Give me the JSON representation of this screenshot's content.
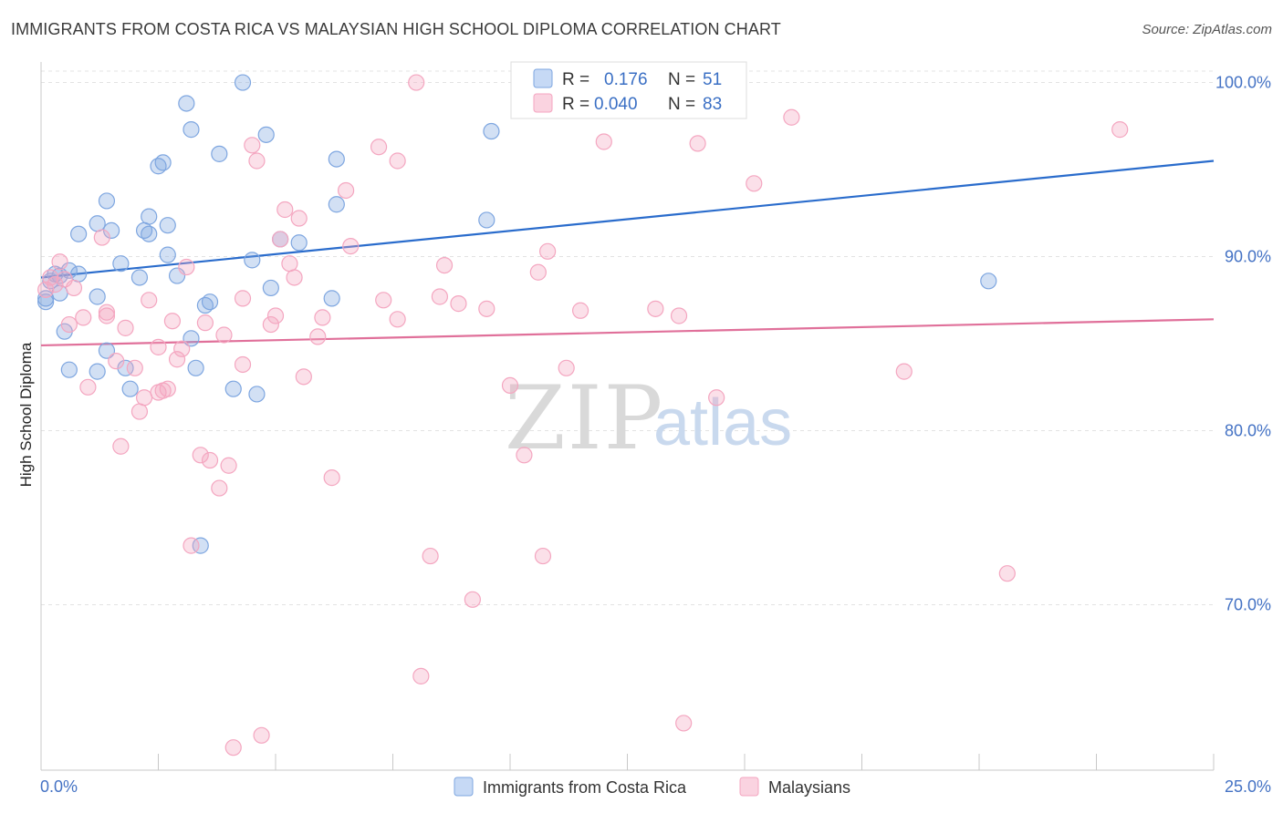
{
  "title": "IMMIGRANTS FROM COSTA RICA VS MALAYSIAN HIGH SCHOOL DIPLOMA CORRELATION CHART",
  "source": "Source: ZipAtlas.com",
  "watermark": {
    "zip": "ZIP",
    "atlas": "atlas"
  },
  "legend": {
    "rows": [
      {
        "r_label": "R =",
        "r_value": "0.176",
        "n_label": "N =",
        "n_value": "51",
        "color": "#7ea6e0"
      },
      {
        "r_label": "R =",
        "r_value": "0.040",
        "n_label": "N =",
        "n_value": "83",
        "color": "#f4a6c0"
      }
    ]
  },
  "bottom_legend": [
    {
      "label": "Immigrants from Costa Rica",
      "color": "#7ea6e0"
    },
    {
      "label": "Malaysians",
      "color": "#f4a6c0"
    }
  ],
  "chart_data": {
    "type": "scatter",
    "title": "IMMIGRANTS FROM COSTA RICA VS MALAYSIAN HIGH SCHOOL DIPLOMA CORRELATION CHART",
    "xlabel": "",
    "ylabel": "High School Diploma",
    "xlim": [
      0,
      25
    ],
    "ylim": [
      60.5,
      101
    ],
    "x_tick_labels": [
      "0.0%",
      "25.0%"
    ],
    "y_ticks": [
      70,
      80,
      90,
      100
    ],
    "y_tick_labels": [
      "70.0%",
      "80.0%",
      "90.0%",
      "100.0%"
    ],
    "grid": true,
    "legend_position": "top-center",
    "series": [
      {
        "name": "Immigrants from Costa Rica",
        "color": "#7ea6e0",
        "line_color": "#2a6ccc",
        "trend": {
          "x": [
            0,
            25
          ],
          "y": [
            88.8,
            95.5
          ]
        },
        "points": [
          [
            0.1,
            87.6
          ],
          [
            0.1,
            87.4
          ],
          [
            0.2,
            88.6
          ],
          [
            0.3,
            89.0
          ],
          [
            0.4,
            88.9
          ],
          [
            0.4,
            87.9
          ],
          [
            0.5,
            85.7
          ],
          [
            0.6,
            83.5
          ],
          [
            0.6,
            89.2
          ],
          [
            0.8,
            91.3
          ],
          [
            0.8,
            89.0
          ],
          [
            1.2,
            83.4
          ],
          [
            1.2,
            87.7
          ],
          [
            1.2,
            91.9
          ],
          [
            1.4,
            93.2
          ],
          [
            1.5,
            91.5
          ],
          [
            1.4,
            84.6
          ],
          [
            1.7,
            89.6
          ],
          [
            1.8,
            83.6
          ],
          [
            1.9,
            82.4
          ],
          [
            2.1,
            88.8
          ],
          [
            2.2,
            91.5
          ],
          [
            2.3,
            92.3
          ],
          [
            2.3,
            91.3
          ],
          [
            2.5,
            95.2
          ],
          [
            2.6,
            95.4
          ],
          [
            2.7,
            91.8
          ],
          [
            2.7,
            90.1
          ],
          [
            2.9,
            88.9
          ],
          [
            3.1,
            98.8
          ],
          [
            3.2,
            85.3
          ],
          [
            3.2,
            97.3
          ],
          [
            3.3,
            83.6
          ],
          [
            3.4,
            73.4
          ],
          [
            3.5,
            87.2
          ],
          [
            3.6,
            87.4
          ],
          [
            3.8,
            95.9
          ],
          [
            4.1,
            82.4
          ],
          [
            4.3,
            100.0
          ],
          [
            4.5,
            89.8
          ],
          [
            4.6,
            82.1
          ],
          [
            4.8,
            97.0
          ],
          [
            4.9,
            88.2
          ],
          [
            5.1,
            91.0
          ],
          [
            5.5,
            90.8
          ],
          [
            6.2,
            87.6
          ],
          [
            6.3,
            95.6
          ],
          [
            6.3,
            93.0
          ],
          [
            9.5,
            92.1
          ],
          [
            9.6,
            97.2
          ],
          [
            20.2,
            88.6
          ]
        ]
      },
      {
        "name": "Malaysians",
        "color": "#f4a6c0",
        "line_color": "#e0709a",
        "trend": {
          "x": [
            0,
            25
          ],
          "y": [
            84.9,
            86.4
          ]
        },
        "points": [
          [
            0.1,
            88.1
          ],
          [
            0.2,
            88.8
          ],
          [
            0.3,
            88.4
          ],
          [
            0.4,
            89.7
          ],
          [
            0.5,
            88.7
          ],
          [
            0.6,
            86.1
          ],
          [
            0.7,
            88.2
          ],
          [
            1.0,
            82.5
          ],
          [
            1.3,
            91.1
          ],
          [
            1.4,
            86.6
          ],
          [
            1.4,
            86.8
          ],
          [
            1.7,
            79.1
          ],
          [
            1.8,
            85.9
          ],
          [
            2.0,
            83.6
          ],
          [
            2.1,
            81.1
          ],
          [
            2.2,
            81.9
          ],
          [
            2.3,
            87.5
          ],
          [
            2.5,
            82.2
          ],
          [
            2.5,
            84.8
          ],
          [
            2.6,
            82.3
          ],
          [
            2.7,
            82.4
          ],
          [
            2.9,
            84.1
          ],
          [
            3.0,
            84.7
          ],
          [
            3.1,
            89.4
          ],
          [
            3.2,
            73.4
          ],
          [
            3.4,
            78.6
          ],
          [
            3.5,
            86.2
          ],
          [
            3.6,
            78.3
          ],
          [
            3.8,
            76.7
          ],
          [
            3.9,
            85.5
          ],
          [
            4.0,
            78.0
          ],
          [
            4.1,
            61.8
          ],
          [
            4.3,
            83.8
          ],
          [
            4.3,
            87.6
          ],
          [
            4.5,
            96.4
          ],
          [
            4.6,
            95.5
          ],
          [
            4.7,
            62.5
          ],
          [
            4.9,
            86.1
          ],
          [
            5.0,
            86.6
          ],
          [
            5.1,
            91.0
          ],
          [
            5.2,
            92.7
          ],
          [
            5.3,
            89.6
          ],
          [
            5.4,
            88.8
          ],
          [
            5.5,
            92.2
          ],
          [
            5.6,
            83.1
          ],
          [
            5.9,
            85.4
          ],
          [
            6.0,
            86.5
          ],
          [
            6.2,
            77.3
          ],
          [
            6.5,
            93.8
          ],
          [
            6.6,
            90.6
          ],
          [
            7.2,
            96.3
          ],
          [
            7.3,
            87.5
          ],
          [
            7.6,
            95.5
          ],
          [
            7.6,
            86.4
          ],
          [
            8.0,
            100.0
          ],
          [
            8.1,
            65.9
          ],
          [
            8.3,
            72.8
          ],
          [
            8.5,
            87.7
          ],
          [
            8.6,
            89.5
          ],
          [
            8.9,
            87.3
          ],
          [
            9.2,
            70.3
          ],
          [
            9.5,
            87.0
          ],
          [
            10.0,
            82.6
          ],
          [
            10.3,
            78.6
          ],
          [
            10.6,
            89.1
          ],
          [
            10.7,
            72.8
          ],
          [
            10.8,
            90.3
          ],
          [
            11.2,
            83.6
          ],
          [
            11.5,
            86.9
          ],
          [
            12.0,
            96.6
          ],
          [
            13.1,
            87.0
          ],
          [
            13.6,
            86.6
          ],
          [
            13.7,
            63.2
          ],
          [
            14.0,
            96.5
          ],
          [
            14.4,
            81.9
          ],
          [
            15.2,
            94.2
          ],
          [
            16.0,
            98.0
          ],
          [
            18.4,
            83.4
          ],
          [
            20.6,
            71.8
          ],
          [
            23.0,
            97.3
          ],
          [
            0.9,
            86.5
          ],
          [
            2.8,
            86.3
          ],
          [
            1.6,
            84.0
          ]
        ]
      }
    ]
  }
}
